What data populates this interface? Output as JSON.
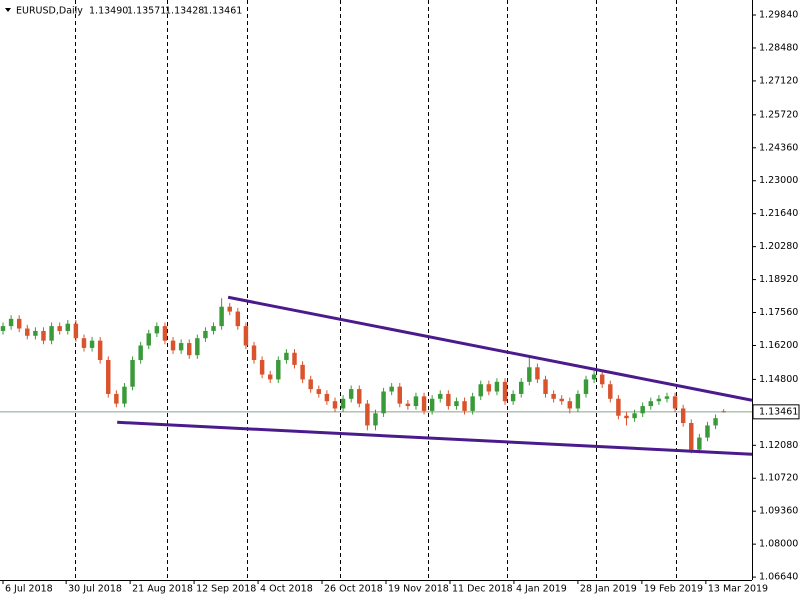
{
  "chart_data": {
    "type": "candlestick",
    "symbol": "EURUSD,Daily",
    "last_bar_labels": [
      "1.13490",
      "1.13571",
      "1.13428",
      "1.13461"
    ],
    "up_color": "#3a9a3a",
    "down_color": "#d9532c",
    "open": [
      1.168,
      1.17,
      1.173,
      1.169,
      1.166,
      1.168,
      1.164,
      1.17,
      1.168,
      1.171,
      1.165,
      1.161,
      1.164,
      1.156,
      1.142,
      1.138,
      1.145,
      1.156,
      1.162,
      1.167,
      1.17,
      1.164,
      1.16,
      1.163,
      1.158,
      1.165,
      1.168,
      1.17,
      1.178,
      1.176,
      1.17,
      1.162,
      1.156,
      1.15,
      1.148,
      1.156,
      1.159,
      1.154,
      1.148,
      1.144,
      1.142,
      1.139,
      1.136,
      1.14,
      1.144,
      1.138,
      1.129,
      1.134,
      1.143,
      1.145,
      1.138,
      1.137,
      1.141,
      1.135,
      1.14,
      1.142,
      1.137,
      1.139,
      1.135,
      1.141,
      1.146,
      1.143,
      1.147,
      1.139,
      1.142,
      1.147,
      1.153,
      1.148,
      1.142,
      1.14,
      1.139,
      1.136,
      1.142,
      1.148,
      1.15,
      1.146,
      1.14,
      1.133,
      1.132,
      1.134,
      1.137,
      1.139,
      1.14,
      1.141,
      1.136,
      1.13,
      1.119,
      1.124,
      1.129,
      1.1349
    ],
    "high": [
      1.1715,
      1.1745,
      1.1745,
      1.1705,
      1.1695,
      1.1695,
      1.1715,
      1.1715,
      1.1725,
      1.1725,
      1.1665,
      1.1655,
      1.1655,
      1.1575,
      1.1435,
      1.1465,
      1.1575,
      1.1635,
      1.1685,
      1.1715,
      1.1715,
      1.1655,
      1.1645,
      1.1645,
      1.1665,
      1.1695,
      1.1715,
      1.1815,
      1.1795,
      1.1775,
      1.1715,
      1.1635,
      1.1575,
      1.1515,
      1.1575,
      1.1605,
      1.1605,
      1.1555,
      1.1495,
      1.1455,
      1.1435,
      1.1405,
      1.1415,
      1.1455,
      1.1455,
      1.1395,
      1.1355,
      1.1445,
      1.1465,
      1.1465,
      1.1395,
      1.1425,
      1.1425,
      1.1415,
      1.1435,
      1.1435,
      1.1405,
      1.1405,
      1.1425,
      1.1475,
      1.1475,
      1.1485,
      1.1485,
      1.1435,
      1.1485,
      1.157,
      1.1545,
      1.1495,
      1.1435,
      1.1415,
      1.1405,
      1.1435,
      1.1495,
      1.1515,
      1.1515,
      1.1475,
      1.1415,
      1.1345,
      1.1355,
      1.1385,
      1.1405,
      1.1415,
      1.1425,
      1.1425,
      1.1375,
      1.1315,
      1.1255,
      1.1305,
      1.1335,
      1.13571
    ],
    "low": [
      1.1665,
      1.1685,
      1.1675,
      1.1645,
      1.1645,
      1.1625,
      1.1625,
      1.1665,
      1.1665,
      1.1635,
      1.1595,
      1.1595,
      1.1545,
      1.1405,
      1.1365,
      1.1365,
      1.1435,
      1.1545,
      1.1605,
      1.1655,
      1.1625,
      1.1585,
      1.1585,
      1.1565,
      1.1565,
      1.1635,
      1.1665,
      1.1685,
      1.1745,
      1.1685,
      1.1605,
      1.1545,
      1.1485,
      1.1465,
      1.1465,
      1.1545,
      1.1525,
      1.1465,
      1.1425,
      1.1405,
      1.1375,
      1.1345,
      1.1345,
      1.1385,
      1.1365,
      1.127,
      1.127,
      1.1325,
      1.1415,
      1.1365,
      1.1355,
      1.1355,
      1.1335,
      1.1335,
      1.1385,
      1.1355,
      1.1355,
      1.1335,
      1.1335,
      1.1395,
      1.1415,
      1.1415,
      1.1375,
      1.1375,
      1.1405,
      1.1455,
      1.1465,
      1.1405,
      1.1385,
      1.1375,
      1.134,
      1.1345,
      1.1405,
      1.1465,
      1.1445,
      1.1385,
      1.1315,
      1.129,
      1.1305,
      1.1325,
      1.1355,
      1.1375,
      1.1385,
      1.1345,
      1.1285,
      1.1175,
      1.1175,
      1.1225,
      1.1275,
      1.13428
    ],
    "close": [
      1.17,
      1.173,
      1.169,
      1.166,
      1.168,
      1.164,
      1.17,
      1.168,
      1.171,
      1.165,
      1.161,
      1.164,
      1.156,
      1.142,
      1.138,
      1.145,
      1.156,
      1.162,
      1.167,
      1.17,
      1.164,
      1.16,
      1.163,
      1.158,
      1.165,
      1.168,
      1.17,
      1.178,
      1.176,
      1.17,
      1.162,
      1.156,
      1.15,
      1.148,
      1.156,
      1.159,
      1.154,
      1.148,
      1.144,
      1.142,
      1.139,
      1.136,
      1.14,
      1.144,
      1.138,
      1.129,
      1.134,
      1.143,
      1.145,
      1.138,
      1.137,
      1.141,
      1.135,
      1.14,
      1.142,
      1.137,
      1.139,
      1.135,
      1.141,
      1.146,
      1.143,
      1.147,
      1.139,
      1.142,
      1.147,
      1.153,
      1.148,
      1.142,
      1.14,
      1.139,
      1.136,
      1.142,
      1.148,
      1.15,
      1.146,
      1.14,
      1.133,
      1.132,
      1.134,
      1.137,
      1.139,
      1.14,
      1.141,
      1.136,
      1.13,
      1.119,
      1.124,
      1.129,
      1.132,
      1.13461
    ],
    "current_price": {
      "value": 1.13461,
      "label": "1.13461"
    },
    "trendlines": [
      {
        "color": "#4b1a8c",
        "x": [
          27.8,
          92.5
        ],
        "y": [
          1.1819,
          1.1394
        ]
      },
      {
        "color": "#4b1a8c",
        "x": [
          14.1,
          92.5
        ],
        "y": [
          1.1303,
          1.1171
        ]
      }
    ],
    "xlim": [
      -0.37,
      92.5
    ],
    "xticks": [
      {
        "value": 0,
        "label": "6 Jul 2018"
      },
      {
        "value": 7.8,
        "label": "30 Jul 2018"
      },
      {
        "value": 15.7,
        "label": "21 Aug 2018"
      },
      {
        "value": 23.6,
        "label": "12 Sep 2018"
      },
      {
        "value": 31.5,
        "label": "4 Oct 2018"
      },
      {
        "value": 39.4,
        "label": "26 Oct 2018"
      },
      {
        "value": 47.3,
        "label": "19 Nov 2018"
      },
      {
        "value": 55.2,
        "label": "11 Dec 2018"
      },
      {
        "value": 63.1,
        "label": "4 Jan 2019"
      },
      {
        "value": 71,
        "label": "28 Jan 2019"
      },
      {
        "value": 78.9,
        "label": "19 Feb 2019"
      },
      {
        "value": 86.8,
        "label": "13 Mar 2019"
      }
    ],
    "ylim": [
      1.0619,
      1.3046
    ],
    "yticks": [
      {
        "value": 1.2984,
        "label": "1.29840"
      },
      {
        "value": 1.2848,
        "label": "1.28480"
      },
      {
        "value": 1.2712,
        "label": "1.27120"
      },
      {
        "value": 1.2572,
        "label": "1.25720"
      },
      {
        "value": 1.2436,
        "label": "1.24360"
      },
      {
        "value": 1.23,
        "label": "1.23000"
      },
      {
        "value": 1.2164,
        "label": "1.21640"
      },
      {
        "value": 1.2028,
        "label": "1.20280"
      },
      {
        "value": 1.1892,
        "label": "1.18920"
      },
      {
        "value": 1.1756,
        "label": "1.17560"
      },
      {
        "value": 1.162,
        "label": "1.16200"
      },
      {
        "value": 1.148,
        "label": "1.14800"
      },
      {
        "value": 1.1208,
        "label": "1.12080"
      },
      {
        "value": 1.1072,
        "label": "1.10720"
      },
      {
        "value": 1.0936,
        "label": "1.09360"
      },
      {
        "value": 1.08,
        "label": "1.08000"
      },
      {
        "value": 1.0664,
        "label": "1.06640"
      }
    ]
  }
}
